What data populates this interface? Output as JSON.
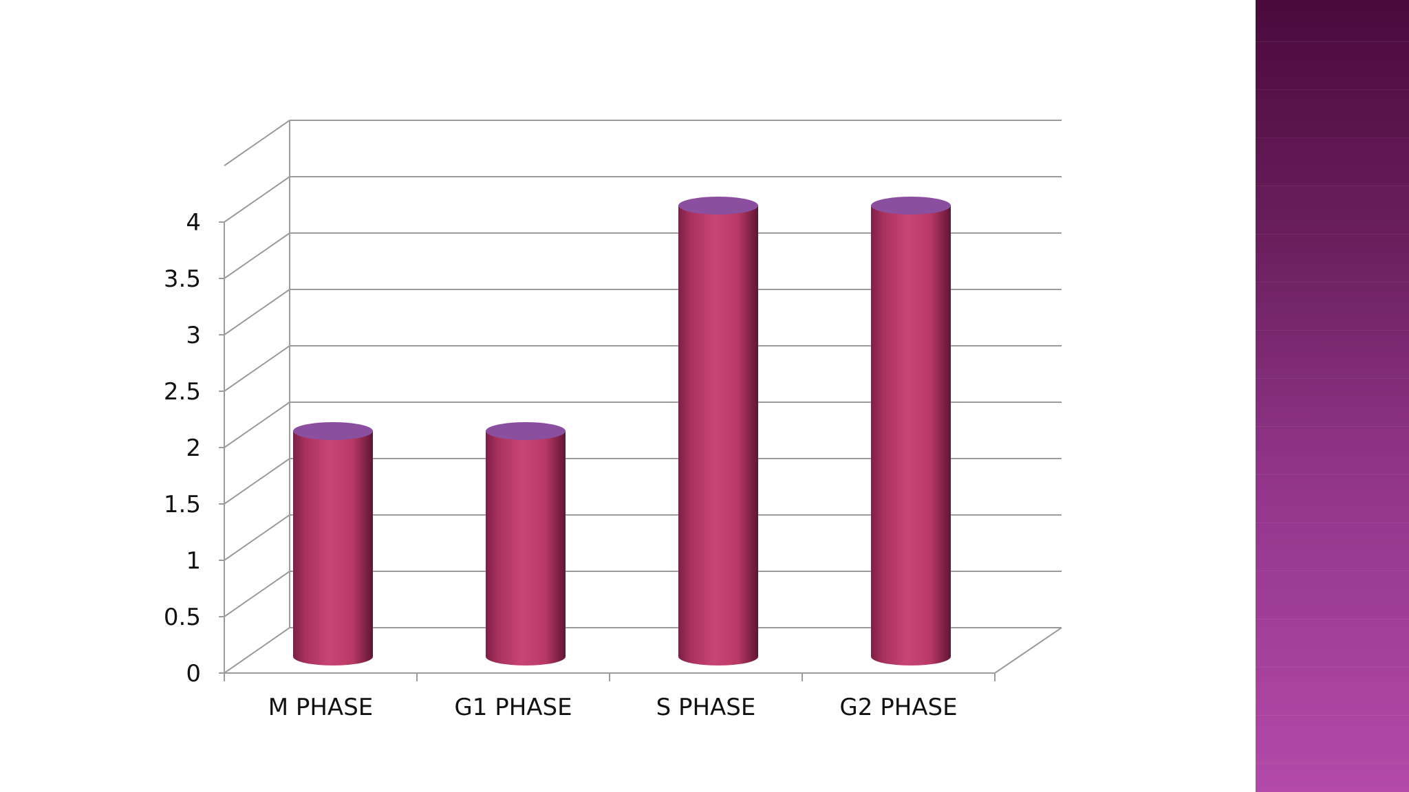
{
  "colors": {
    "bar_body": "#c4406e",
    "bar_top": "#8a4f9e",
    "band_top": "#4a0a3c",
    "band_bottom": "#b34aa8",
    "grid": "#9a9a9a"
  },
  "chart_data": {
    "type": "bar",
    "style": "3d-cylinder",
    "categories": [
      "M PHASE",
      "G1 PHASE",
      "S PHASE",
      "G2 PHASE"
    ],
    "values": [
      2,
      2,
      4,
      4
    ],
    "ylim": [
      0,
      4
    ],
    "yticks": [
      "0",
      "0.5",
      "1",
      "1.5",
      "2",
      "2.5",
      "3",
      "3.5",
      "4"
    ],
    "ytick_values": [
      0,
      0.5,
      1,
      1.5,
      2,
      2.5,
      3,
      3.5,
      4
    ],
    "grid": true,
    "title": "",
    "xlabel": "",
    "ylabel": ""
  }
}
